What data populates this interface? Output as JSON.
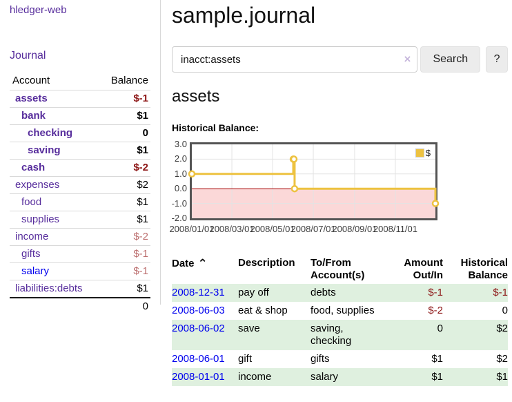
{
  "sidebar": {
    "app_title": "hledger-web",
    "nav": {
      "journal_label": "Journal"
    },
    "accounts_table": {
      "headers": {
        "account": "Account",
        "balance": "Balance"
      },
      "rows": [
        {
          "account": "assets",
          "depth": 0,
          "balance": "$-1",
          "bold": true,
          "negative": true
        },
        {
          "account": "bank",
          "depth": 1,
          "balance": "$1",
          "bold": true
        },
        {
          "account": "checking",
          "depth": 2,
          "balance": "0",
          "bold": true
        },
        {
          "account": "saving",
          "depth": 2,
          "balance": "$1",
          "bold": true
        },
        {
          "account": "cash",
          "depth": 1,
          "balance": "$-2",
          "bold": true,
          "negative": true
        },
        {
          "account": "expenses",
          "depth": 0,
          "balance": "$2"
        },
        {
          "account": "food",
          "depth": 1,
          "balance": "$1"
        },
        {
          "account": "supplies",
          "depth": 1,
          "balance": "$1"
        },
        {
          "account": "income",
          "depth": 0,
          "balance": "$-2",
          "negative_dim": true
        },
        {
          "account": "gifts",
          "depth": 1,
          "balance": "$-1",
          "negative_dim": true
        },
        {
          "account": "salary",
          "depth": 1,
          "balance": "$-1",
          "negative_dim": true,
          "unvisited": true
        },
        {
          "account": "liabilities:debts",
          "depth": 0,
          "balance": "$1"
        }
      ],
      "total": "0"
    }
  },
  "header": {
    "title": "sample.journal"
  },
  "search": {
    "value": "inacct:assets",
    "clear_icon": "×",
    "button_label": "Search",
    "help_label": "?"
  },
  "account_page": {
    "heading": "assets",
    "chart_label": "Historical Balance:"
  },
  "chart_data": {
    "type": "line",
    "title": "Historical Balance:",
    "ylim": [
      -2,
      3
    ],
    "yticks": [
      3.0,
      2.0,
      1.0,
      0.0,
      -1.0,
      -2.0
    ],
    "x_max_day": 365,
    "xticks": [
      {
        "label": "2008/01/01",
        "day": 0
      },
      {
        "label": "2008/03/01",
        "day": 60
      },
      {
        "label": "2008/05/01",
        "day": 121
      },
      {
        "label": "2008/07/01",
        "day": 182
      },
      {
        "label": "2008/09/01",
        "day": 244
      },
      {
        "label": "2008/11/01",
        "day": 305
      }
    ],
    "series": [
      {
        "name": "$",
        "color": "#edc240",
        "step": true,
        "points": [
          {
            "date": "2008-01-01",
            "day": 0,
            "value": 1
          },
          {
            "date": "2008-06-01",
            "day": 152,
            "value": 2
          },
          {
            "date": "2008-06-02",
            "day": 153,
            "value": 2
          },
          {
            "date": "2008-06-03",
            "day": 154,
            "value": 0
          },
          {
            "date": "2008-12-31",
            "day": 365,
            "value": -1
          }
        ]
      }
    ],
    "legend_position": "top-right",
    "grid": true,
    "colors": {
      "negative_region": "#fbd8d8",
      "zero_line": "#a40000",
      "grid": "#e3e3e3"
    }
  },
  "transactions": {
    "headers": {
      "date": "Date",
      "sort_icon": "⌃",
      "description": "Description",
      "accounts": [
        "To/From",
        "Account(s)"
      ],
      "amount": [
        "Amount",
        "Out/In"
      ],
      "balance": [
        "Historical",
        "Balance"
      ]
    },
    "rows": [
      {
        "date": "2008-12-31",
        "description": "pay off",
        "accounts": "debts",
        "amount": "$-1",
        "balance": "$-1",
        "amount_negative": true,
        "balance_negative": true
      },
      {
        "date": "2008-06-03",
        "description": "eat & shop",
        "accounts": "food, supplies",
        "amount": "$-2",
        "balance": "0",
        "amount_negative": true
      },
      {
        "date": "2008-06-02",
        "description": "save",
        "accounts": [
          "saving,",
          "checking"
        ],
        "amount": "0",
        "balance": "$2"
      },
      {
        "date": "2008-06-01",
        "description": "gift",
        "accounts": "gifts",
        "amount": "$1",
        "balance": "$2"
      },
      {
        "date": "2008-01-01",
        "description": "income",
        "accounts": "salary",
        "amount": "$1",
        "balance": "$1"
      }
    ]
  }
}
